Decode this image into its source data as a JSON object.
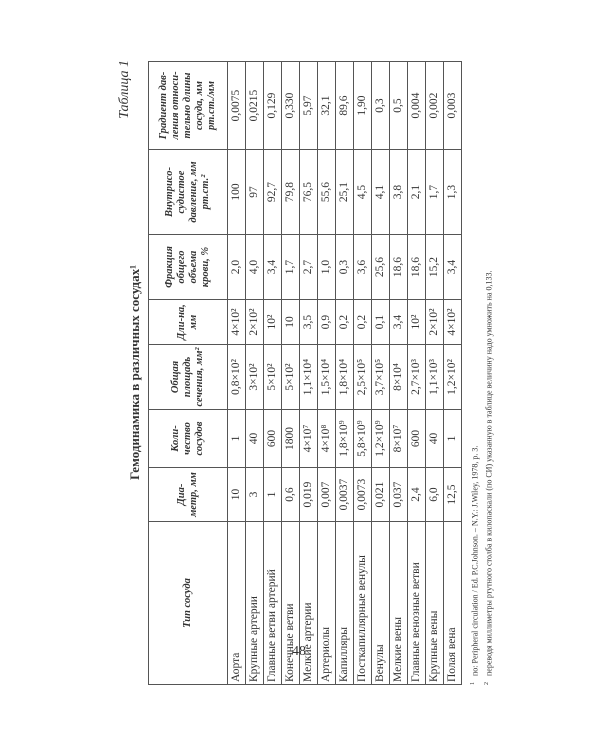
{
  "table_label": "Таблица 1",
  "title": "Гемодинамика в различных сосудах¹",
  "columns": [
    "Тип сосуда",
    "Диа-метр, мм",
    "Коли-чество сосудов",
    "Общая площадь сечения, мм²",
    "Дли-на, мм",
    "Фракция общего объема крови, %",
    "Внутрисо-судистое давление, мм рт.ст.²",
    "Градиент дав-ления относи-тельно длины сосуда, мм рт.ст./мм"
  ],
  "rows": [
    [
      "Аорта",
      "10",
      "1",
      "0,8×10²",
      "4×10²",
      "2,0",
      "100",
      "0,0075"
    ],
    [
      "Крупные артерии",
      "3",
      "40",
      "3×10²",
      "2×10²",
      "4,0",
      "97",
      "0,0215"
    ],
    [
      "Главные ветви артерий",
      "1",
      "600",
      "5×10²",
      "10²",
      "3,4",
      "92,7",
      "0,129"
    ],
    [
      "Конечные ветви",
      "0,6",
      "1800",
      "5×10²",
      "10",
      "1,7",
      "79,8",
      "0,330"
    ],
    [
      "Мелкие артерии",
      "0,019",
      "4×10⁷",
      "1,1×10⁴",
      "3,5",
      "2,7",
      "76,5",
      "5,97"
    ],
    [
      "Артериолы",
      "0,007",
      "4×10⁸",
      "1,5×10⁴",
      "0,9",
      "1,0",
      "55,6",
      "32,1"
    ],
    [
      "Капилляры",
      "0,0037",
      "1,8×10⁹",
      "1,8×10⁴",
      "0,2",
      "0,3",
      "25,1",
      "89,6"
    ],
    [
      "Посткапиллярные венулы",
      "0,0073",
      "5,8×10⁹",
      "2,5×10⁵",
      "0,2",
      "3,6",
      "4,5",
      "1,90"
    ],
    [
      "Венулы",
      "0,021",
      "1,2×10⁹",
      "3,7×10⁵",
      "0,1",
      "25,6",
      "4,1",
      "0,3"
    ],
    [
      "Мелкие вены",
      "0,037",
      "8×10⁷",
      "8×10⁴",
      "3,4",
      "18,6",
      "3,8",
      "0,5"
    ],
    [
      "Главные венозные ветви",
      "2,4",
      "600",
      "2,7×10³",
      "10²",
      "18,6",
      "2,1",
      "0,004"
    ],
    [
      "Крупные вены",
      "6,0",
      "40",
      "1,1×10³",
      "2×10²",
      "15,2",
      "1,7",
      "0,002"
    ],
    [
      "Полая вена",
      "12,5",
      "1",
      "1,2×10²",
      "4×10²",
      "3,4",
      "1,3",
      "0,003"
    ]
  ],
  "footnotes": [
    {
      "mark": "1",
      "text": "по: Peripheral circulation / Ed. P.C.Johnson. – N.Y.: J.Wiley, 1978, p. 3."
    },
    {
      "mark": "2",
      "text": "переводя миллиметры ртутного столба в килопаскали (по СИ) указанную в таблице величину надо умножить на 0,133."
    }
  ],
  "page_number": "48"
}
